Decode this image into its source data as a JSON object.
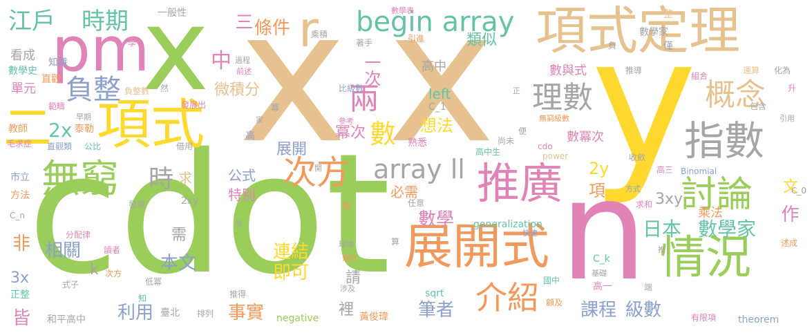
{
  "words": {
    "cdot": "cdot",
    "x": "x",
    "y": "y",
    "n": "n",
    "r": "r",
    "pm": "pm",
    "er": "二",
    "xiangshi": "項式",
    "xiangshi_dingli": "項式定理",
    "zhankaishi": "展開式",
    "qingkuang": "情況",
    "tuiguang": "推廣",
    "zhishu": "指數",
    "taolun": "討論",
    "wuqiong": "無窮",
    "ciwang": "次方",
    "liang": "兩",
    "gainian": "概念",
    "lishu": "理數",
    "fuzheng": "負整",
    "jieshao": "介紹",
    "begin_array": "begin array",
    "array_ll": "array ll",
    "edo": "江戶",
    "shiqi": "時期",
    "tiaojian": "條件",
    "san": "三",
    "zhong": "中",
    "shu_big": "數",
    "xiangfa": "想法",
    "shi": "時",
    "riben": "日本",
    "shuxuejia": "數學家",
    "zuo": "作",
    "lianjie": "連結",
    "jike": "即可",
    "shuxue": "數學",
    "xiangguan": "相關",
    "benwen": "本文",
    "liyong": "利用",
    "shishi": "事實",
    "kecheng": "課程",
    "jishu": "級數",
    "bizhe": "筆者",
    "jie": "皆",
    "fei": "非",
    "twox": "2x",
    "threex": "3x",
    "twoy": "2y",
    "threexy": "3xy",
    "twoxy": "2xy",
    "xiang": "項",
    "weijifen": "微積分",
    "mici": "冪次",
    "zhankai": "展開",
    "gongshi": "公式",
    "tebie": "特別",
    "bixu": "必需",
    "qiu": "求",
    "xu": "需",
    "k": "k",
    "qing": "請",
    "li": "裡",
    "leisi": "類似",
    "gaozhong": "高中",
    "yici": "一次",
    "left": "left",
    "shuyushi": "數與式",
    "shumici": "數冪次",
    "chengfa": "乘法",
    "wen": "文",
    "generalization": "generalization",
    "negative": "negative",
    "sqrt": "sqrt",
    "theorem": "theorem",
    "power": "power",
    "binomial": "Binomial",
    "cdo": "cdo",
    "c1": "C_1",
    "c0": "C_0",
    "cn": "C_n",
    "ck": "C_k",
    "yiban": "一般性",
    "shuxuebiao": "數學表",
    "zheng_big": "整",
    "shuxuejia2": "數學家",
    "jin": "僅",
    "fu": "負",
    "kancheng": "看成",
    "shuxueshi": "數學史",
    "danyuan": "單元",
    "zhishi": "知識",
    "zhiguan": "直觀",
    "fanchou": "範疇",
    "jiaoshi": "教師",
    "taile": "泰勒",
    "zaoqi": "早期",
    "maoqiuzheng": "毛求症",
    "zhiguanlei": "直觀類",
    "gongbi": "公比",
    "shili": "市立",
    "fangfa": "方法",
    "guocheng": "過程",
    "qianshu": "前述",
    "fuzhengshu": "負整數",
    "fazhanchu": "發展出",
    "bijishu": "比級數",
    "canao": "參考",
    "shuxi": "熟悉",
    "jiechu": "借用",
    "fenpeilv": "分配律",
    "duzhe": "讀者",
    "shizi": "式子",
    "cifang2": "次方",
    "dimi": "低冪",
    "zhengzheng": "正整",
    "hepinggaozhong": "和平高中",
    "zhishou": "著手",
    "yinjin": "引進",
    "chengji": "乘積",
    "xue": "學",
    "ran": "然",
    "mi": "冪",
    "jia": "家",
    "gao": "高",
    "kai": "開",
    "faxian": "發現",
    "shang": "尚",
    "ji": "藉",
    "lilun": "理論",
    "shihe": "適合",
    "suan": "算",
    "kuaisu": "快速",
    "sheji": "涉及",
    "tuide": "推得",
    "taibei": "臺北",
    "pailie": "排列",
    "huangjunwei": "黃俊瑋",
    "guojia": "國中",
    "gaoyi": "高一",
    "jichu": "基礎",
    "guji": "顧及",
    "duan": "端",
    "youxianxiang": "有限項",
    "tuijin": "推導",
    "zuhe": "組合",
    "yunsuan": "運算",
    "huawei": "化為",
    "sheng": "升",
    "baohan": "包含",
    "yinyong": "引用",
    "zheng": "正",
    "bian": "便",
    "wuqiongjishu": "無窮級數",
    "shangwei": "尚未",
    "gaozhongsheng": "高中生",
    "renyi": "任意",
    "shoulian": "收斂",
    "gaosan": "高三",
    "fangshi": "方式",
    "qiuhe": "求和",
    "tui": "推",
    "shucheng": "述成",
    "zhi": "知"
  }
}
